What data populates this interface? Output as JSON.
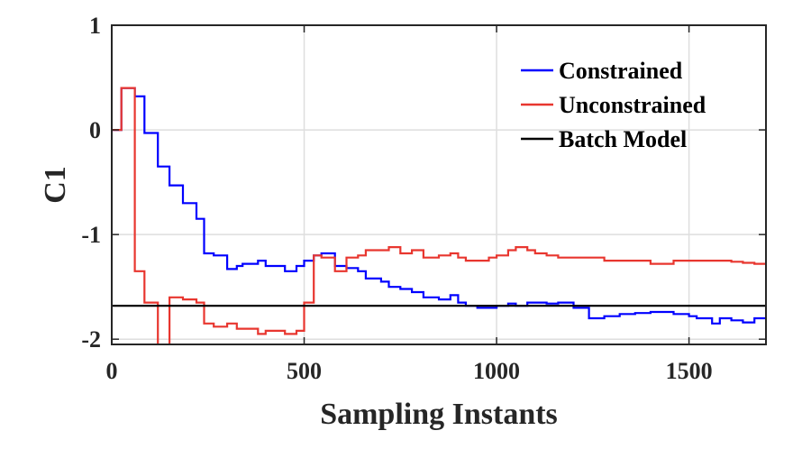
{
  "chart_data": {
    "type": "line",
    "xlabel": "Sampling Instants",
    "ylabel": "C1",
    "xlim": [
      0,
      1700
    ],
    "ylim": [
      -2.05,
      1
    ],
    "xticks": [
      0,
      500,
      1000,
      1500
    ],
    "yticks": [
      -2,
      -1,
      0,
      1
    ],
    "grid": true,
    "legend_position": "top-right",
    "series": [
      {
        "name": "Constrained",
        "color": "#0000ff",
        "step": true,
        "x": [
          0,
          25,
          60,
          85,
          120,
          150,
          185,
          220,
          240,
          265,
          300,
          325,
          340,
          380,
          400,
          425,
          450,
          480,
          500,
          525,
          545,
          580,
          610,
          640,
          660,
          700,
          720,
          750,
          780,
          810,
          850,
          880,
          900,
          920,
          950,
          980,
          1000,
          1030,
          1050,
          1080,
          1100,
          1130,
          1160,
          1200,
          1240,
          1280,
          1320,
          1360,
          1400,
          1440,
          1460,
          1500,
          1520,
          1560,
          1580,
          1610,
          1640,
          1670,
          1700
        ],
        "y": [
          0,
          0.4,
          0.32,
          -0.03,
          -0.35,
          -0.53,
          -0.7,
          -0.85,
          -1.18,
          -1.2,
          -1.33,
          -1.3,
          -1.28,
          -1.25,
          -1.3,
          -1.3,
          -1.35,
          -1.3,
          -1.25,
          -1.2,
          -1.18,
          -1.3,
          -1.32,
          -1.35,
          -1.42,
          -1.45,
          -1.5,
          -1.52,
          -1.55,
          -1.6,
          -1.62,
          -1.58,
          -1.65,
          -1.68,
          -1.7,
          -1.7,
          -1.68,
          -1.66,
          -1.68,
          -1.65,
          -1.65,
          -1.66,
          -1.65,
          -1.7,
          -1.8,
          -1.78,
          -1.76,
          -1.75,
          -1.74,
          -1.74,
          -1.76,
          -1.78,
          -1.8,
          -1.85,
          -1.8,
          -1.82,
          -1.84,
          -1.8,
          -1.8
        ]
      },
      {
        "name": "Unconstrained",
        "color": "#e8362f",
        "step": true,
        "x": [
          0,
          25,
          60,
          85,
          120,
          150,
          185,
          220,
          240,
          265,
          300,
          325,
          340,
          380,
          400,
          425,
          450,
          480,
          500,
          525,
          545,
          580,
          610,
          640,
          660,
          700,
          720,
          750,
          780,
          810,
          850,
          880,
          900,
          920,
          950,
          980,
          1000,
          1030,
          1050,
          1080,
          1100,
          1130,
          1160,
          1200,
          1240,
          1280,
          1320,
          1360,
          1400,
          1440,
          1460,
          1500,
          1520,
          1560,
          1580,
          1610,
          1640,
          1670,
          1700
        ],
        "y": [
          0,
          0.4,
          -1.35,
          -1.65,
          -2.1,
          -1.6,
          -1.62,
          -1.65,
          -1.85,
          -1.88,
          -1.85,
          -1.9,
          -1.9,
          -1.95,
          -1.92,
          -1.92,
          -1.95,
          -1.92,
          -1.65,
          -1.2,
          -1.22,
          -1.35,
          -1.22,
          -1.2,
          -1.15,
          -1.15,
          -1.12,
          -1.18,
          -1.15,
          -1.22,
          -1.2,
          -1.18,
          -1.22,
          -1.25,
          -1.25,
          -1.22,
          -1.2,
          -1.15,
          -1.12,
          -1.15,
          -1.18,
          -1.2,
          -1.22,
          -1.22,
          -1.22,
          -1.25,
          -1.25,
          -1.25,
          -1.28,
          -1.28,
          -1.25,
          -1.25,
          -1.25,
          -1.25,
          -1.25,
          -1.26,
          -1.27,
          -1.28,
          -1.28
        ]
      },
      {
        "name": "Batch Model",
        "color": "#000000",
        "step": false,
        "x": [
          0,
          1700
        ],
        "y": [
          -1.68,
          -1.68
        ]
      }
    ]
  }
}
